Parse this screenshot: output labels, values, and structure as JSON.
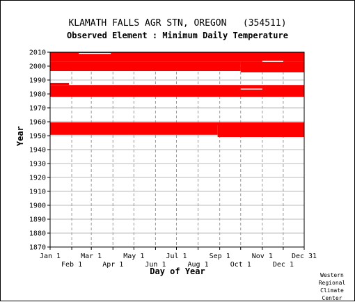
{
  "chart_data": {
    "type": "heatmap",
    "title": "KLAMATH FALLS AGR STN, OREGON   (354511)",
    "subtitle": "Observed Element : Minimum Daily Temperature",
    "xlabel": "Day of Year",
    "ylabel": "Year",
    "x_ticks_row1": [
      "Jan 1",
      "Mar 1",
      "May 1",
      "Jul 1",
      "Sep 1",
      "Nov 1",
      "Dec 31"
    ],
    "x_ticks_row2": [
      "Feb 1",
      "Apr 1",
      "Jun 1",
      "Aug 1",
      "Oct 1",
      "Dec 1"
    ],
    "x_tick_days_row1": [
      1,
      60,
      121,
      182,
      244,
      305,
      365
    ],
    "x_tick_days_row2": [
      32,
      91,
      152,
      213,
      274,
      335
    ],
    "xlim": [
      1,
      365
    ],
    "ylim": [
      1870,
      2010
    ],
    "y_ticks": [
      "1870",
      "1880",
      "1890",
      "1900",
      "1910",
      "1920",
      "1930",
      "1940",
      "1950",
      "1960",
      "1970",
      "1980",
      "1990",
      "2000",
      "2010"
    ],
    "grid": true,
    "data_color": "#ff0000",
    "gap_color": "#ffffff",
    "series": [
      {
        "start_day": 1,
        "end_day": 365,
        "start_year": 2003.2,
        "end_year": 2010.0
      },
      {
        "start_day": 1,
        "end_day": 274,
        "start_year": 1996.5,
        "end_year": 2003.2
      },
      {
        "start_day": 274,
        "end_day": 365,
        "start_year": 1995.5,
        "end_year": 2003.2
      },
      {
        "start_day": 1,
        "end_day": 28,
        "start_year": 1986.4,
        "end_year": 1988.0
      },
      {
        "start_day": 1,
        "end_day": 365,
        "start_year": 1978.0,
        "end_year": 1986.4
      },
      {
        "start_day": 1,
        "end_day": 365,
        "start_year": 1957.5,
        "end_year": 1959.6
      },
      {
        "start_day": 1,
        "end_day": 241,
        "start_year": 1950.6,
        "end_year": 1957.5
      },
      {
        "start_day": 241,
        "end_day": 365,
        "start_year": 1949.0,
        "end_year": 1957.5
      }
    ],
    "gaps": [
      {
        "start_day": 42,
        "end_day": 88,
        "start_year": 2009.1,
        "end_year": 2009.5
      },
      {
        "start_day": 305,
        "end_day": 335,
        "start_year": 2003.4,
        "end_year": 2003.8
      },
      {
        "start_day": 274,
        "end_day": 305,
        "start_year": 1983.4,
        "end_year": 1983.9
      }
    ]
  },
  "credit": [
    "Western",
    "Regional",
    "Climate",
    "Center"
  ]
}
